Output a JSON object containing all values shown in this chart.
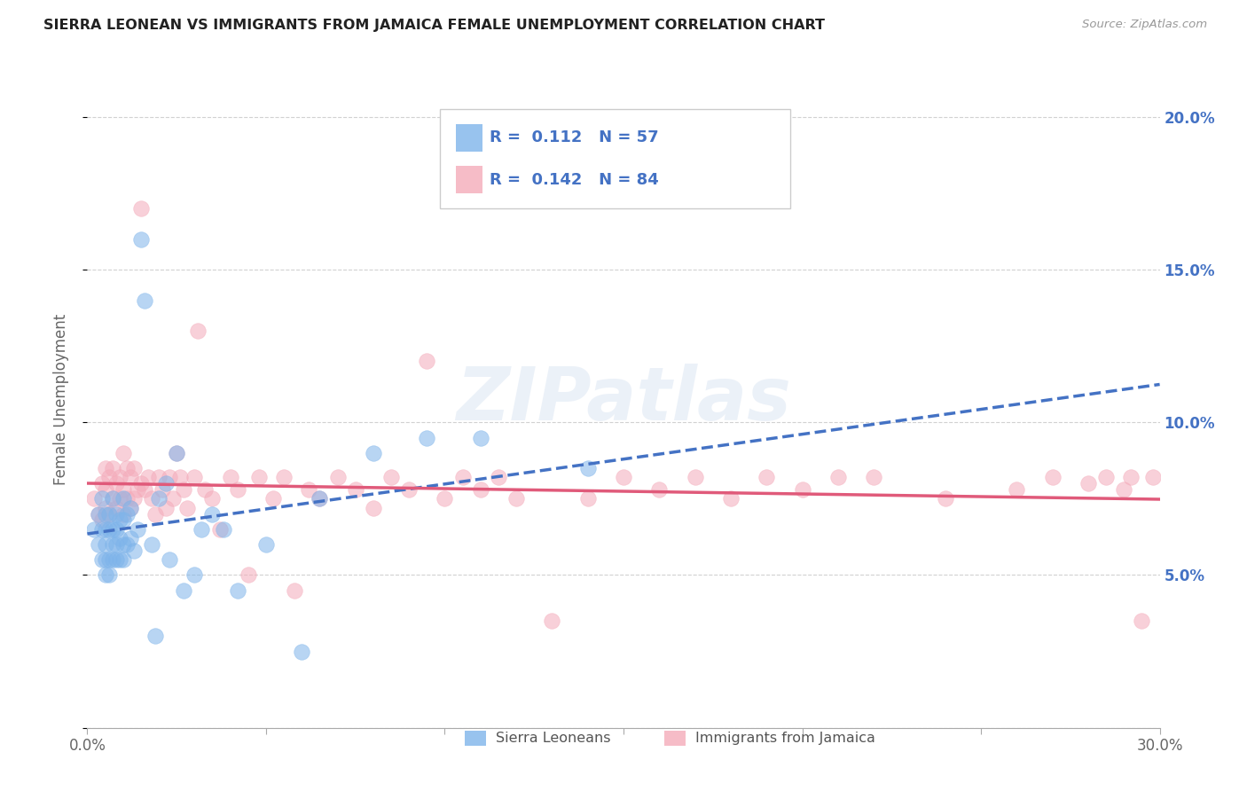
{
  "title": "SIERRA LEONEAN VS IMMIGRANTS FROM JAMAICA FEMALE UNEMPLOYMENT CORRELATION CHART",
  "source": "Source: ZipAtlas.com",
  "ylabel": "Female Unemployment",
  "xlim": [
    0.0,
    0.3
  ],
  "ylim": [
    0.0,
    0.215
  ],
  "xtick_vals": [
    0.0,
    0.05,
    0.1,
    0.15,
    0.2,
    0.25,
    0.3
  ],
  "xtick_labels": [
    "0.0%",
    "",
    "",
    "",
    "",
    "",
    "30.0%"
  ],
  "ytick_vals": [
    0.0,
    0.05,
    0.1,
    0.15,
    0.2
  ],
  "ytick_labels_right": [
    "",
    "5.0%",
    "10.0%",
    "15.0%",
    "20.0%"
  ],
  "sierra_color": "#7EB4EA",
  "jamaica_color": "#F4ABBA",
  "sierra_line_color": "#4472C4",
  "jamaica_line_color": "#E05A7A",
  "sierra_R": "0.112",
  "sierra_N": "57",
  "jamaica_R": "0.142",
  "jamaica_N": "84",
  "legend_label_sierra": "Sierra Leoneans",
  "legend_label_jamaica": "Immigrants from Jamaica",
  "watermark": "ZIPatlas",
  "background_color": "#FFFFFF",
  "grid_color": "#CCCCCC",
  "blue_text_color": "#4472C4",
  "title_color": "#222222",
  "label_color": "#666666",
  "sierra_x": [
    0.002,
    0.003,
    0.003,
    0.004,
    0.004,
    0.004,
    0.005,
    0.005,
    0.005,
    0.005,
    0.005,
    0.006,
    0.006,
    0.006,
    0.006,
    0.007,
    0.007,
    0.007,
    0.007,
    0.008,
    0.008,
    0.008,
    0.008,
    0.009,
    0.009,
    0.009,
    0.01,
    0.01,
    0.01,
    0.01,
    0.011,
    0.011,
    0.012,
    0.012,
    0.013,
    0.014,
    0.015,
    0.016,
    0.018,
    0.019,
    0.02,
    0.022,
    0.023,
    0.025,
    0.027,
    0.03,
    0.032,
    0.035,
    0.038,
    0.042,
    0.05,
    0.06,
    0.065,
    0.08,
    0.095,
    0.11,
    0.14
  ],
  "sierra_y": [
    0.065,
    0.06,
    0.07,
    0.055,
    0.065,
    0.075,
    0.05,
    0.055,
    0.06,
    0.065,
    0.07,
    0.05,
    0.055,
    0.065,
    0.07,
    0.055,
    0.06,
    0.065,
    0.075,
    0.055,
    0.06,
    0.065,
    0.07,
    0.055,
    0.062,
    0.068,
    0.055,
    0.06,
    0.068,
    0.075,
    0.06,
    0.07,
    0.062,
    0.072,
    0.058,
    0.065,
    0.16,
    0.14,
    0.06,
    0.03,
    0.075,
    0.08,
    0.055,
    0.09,
    0.045,
    0.05,
    0.065,
    0.07,
    0.065,
    0.045,
    0.06,
    0.025,
    0.075,
    0.09,
    0.095,
    0.095,
    0.085
  ],
  "jamaica_x": [
    0.002,
    0.003,
    0.004,
    0.004,
    0.005,
    0.005,
    0.005,
    0.006,
    0.006,
    0.007,
    0.007,
    0.008,
    0.008,
    0.009,
    0.009,
    0.01,
    0.01,
    0.01,
    0.011,
    0.011,
    0.012,
    0.012,
    0.013,
    0.013,
    0.014,
    0.015,
    0.015,
    0.016,
    0.017,
    0.018,
    0.019,
    0.02,
    0.021,
    0.022,
    0.023,
    0.024,
    0.025,
    0.026,
    0.027,
    0.028,
    0.03,
    0.031,
    0.033,
    0.035,
    0.037,
    0.04,
    0.042,
    0.045,
    0.048,
    0.052,
    0.055,
    0.058,
    0.062,
    0.065,
    0.07,
    0.075,
    0.08,
    0.085,
    0.09,
    0.095,
    0.1,
    0.105,
    0.11,
    0.115,
    0.12,
    0.13,
    0.14,
    0.15,
    0.16,
    0.17,
    0.18,
    0.19,
    0.2,
    0.21,
    0.22,
    0.24,
    0.26,
    0.27,
    0.28,
    0.285,
    0.29,
    0.292,
    0.295,
    0.298
  ],
  "jamaica_y": [
    0.075,
    0.07,
    0.068,
    0.08,
    0.072,
    0.078,
    0.085,
    0.07,
    0.082,
    0.075,
    0.085,
    0.072,
    0.08,
    0.075,
    0.082,
    0.07,
    0.078,
    0.09,
    0.075,
    0.085,
    0.072,
    0.082,
    0.075,
    0.085,
    0.078,
    0.17,
    0.08,
    0.078,
    0.082,
    0.075,
    0.07,
    0.082,
    0.078,
    0.072,
    0.082,
    0.075,
    0.09,
    0.082,
    0.078,
    0.072,
    0.082,
    0.13,
    0.078,
    0.075,
    0.065,
    0.082,
    0.078,
    0.05,
    0.082,
    0.075,
    0.082,
    0.045,
    0.078,
    0.075,
    0.082,
    0.078,
    0.072,
    0.082,
    0.078,
    0.12,
    0.075,
    0.082,
    0.078,
    0.082,
    0.075,
    0.035,
    0.075,
    0.082,
    0.078,
    0.082,
    0.075,
    0.082,
    0.078,
    0.082,
    0.082,
    0.075,
    0.078,
    0.082,
    0.08,
    0.082,
    0.078,
    0.082,
    0.035,
    0.082
  ]
}
